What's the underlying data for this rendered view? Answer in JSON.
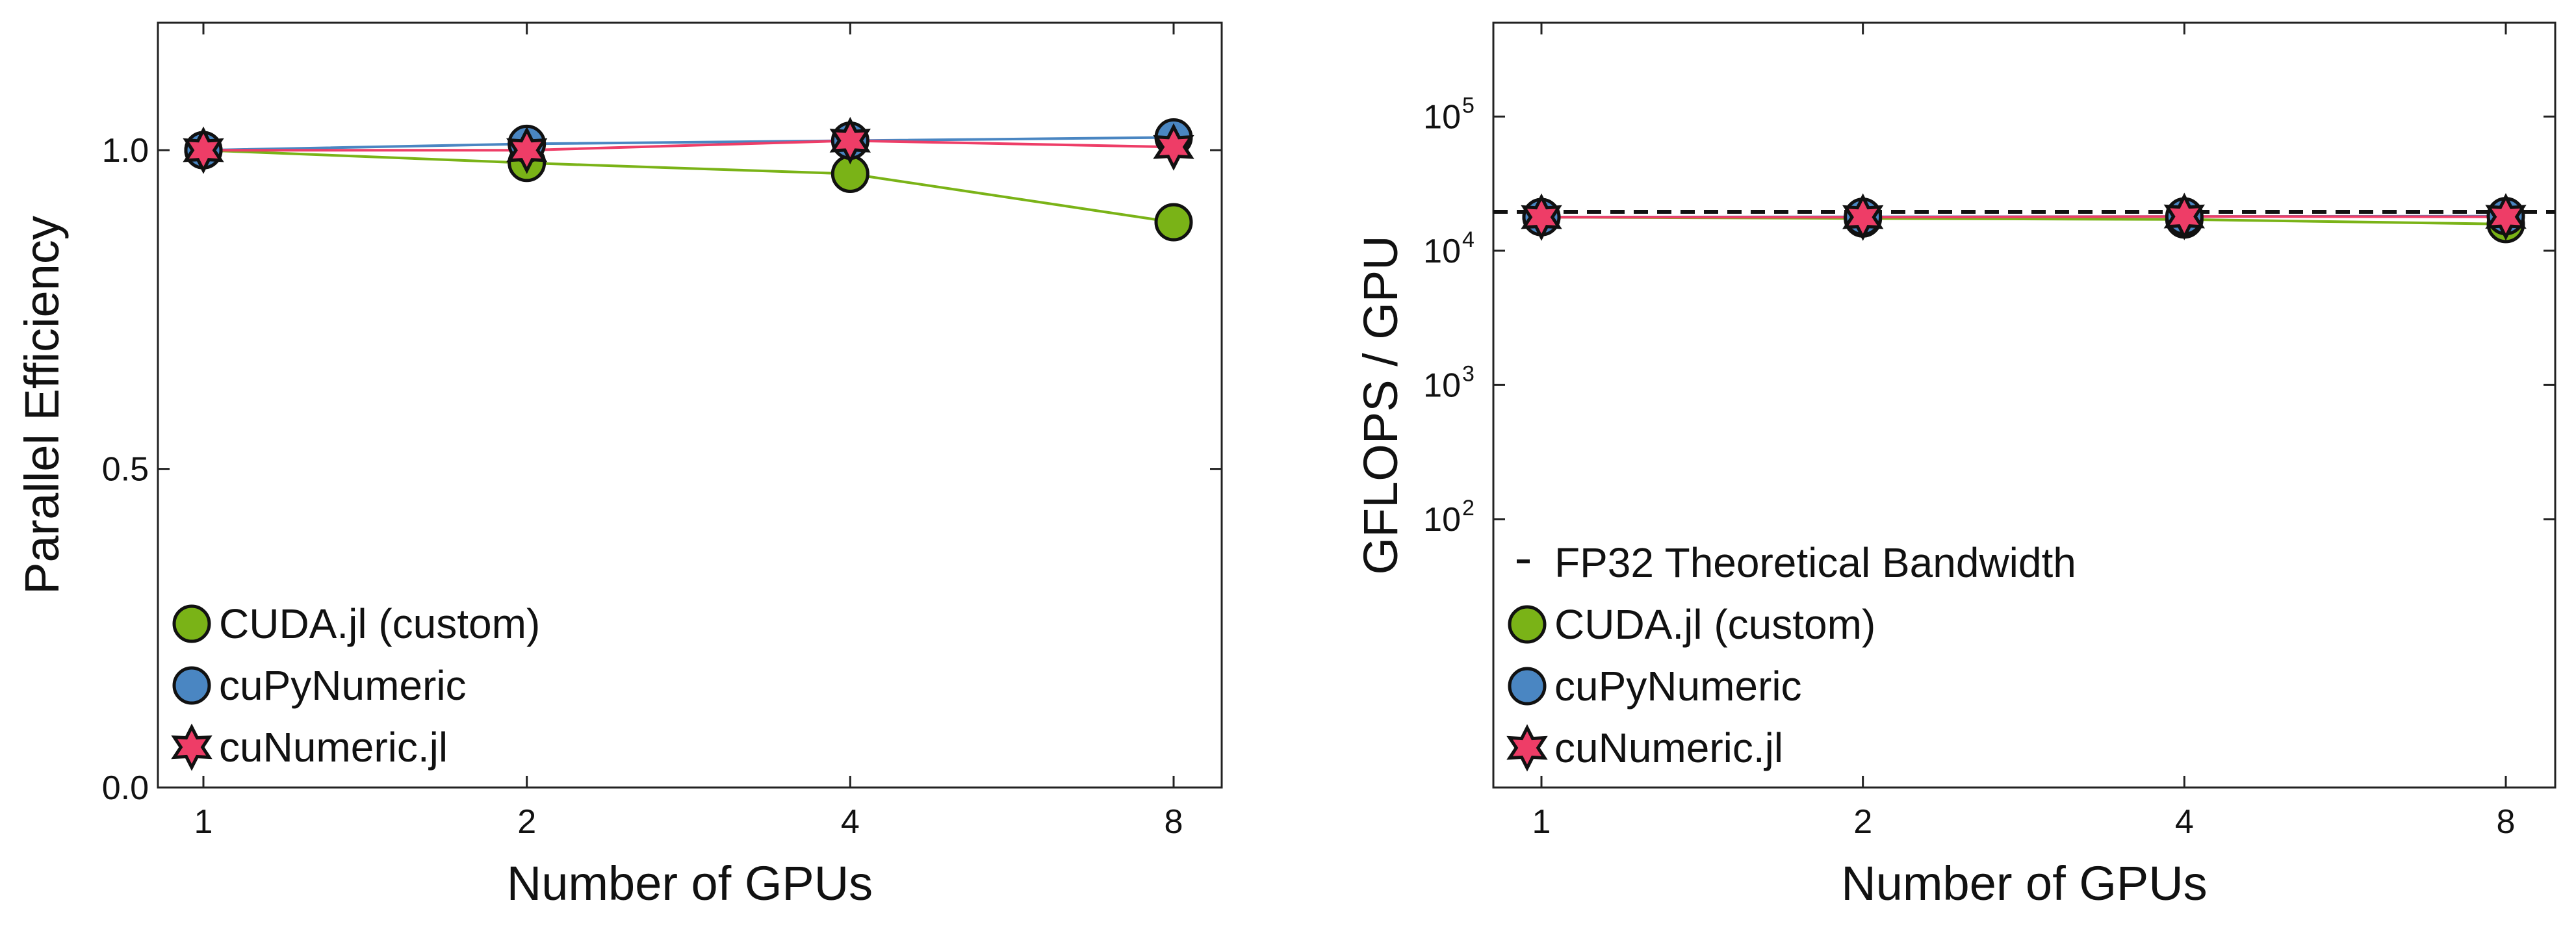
{
  "legend_labels": {
    "cuda": "CUDA.jl (custom)",
    "cupy": "cuPyNumeric",
    "cunum": "cuNumeric.jl",
    "fp32": "FP32 Theoretical Bandwidth"
  },
  "colors": {
    "cuda": "#7ab317",
    "cupy": "#4a86c2",
    "cunum": "#ee3d67",
    "marker_edge": "#111111",
    "reference_line": "#111111"
  },
  "chart_data": [
    {
      "type": "line",
      "title": "",
      "xlabel": "Number of GPUs",
      "ylabel": "Parallel Efficiency",
      "x": [
        1,
        2,
        4,
        8
      ],
      "x_ticks": [
        "1",
        "2",
        "4",
        "8"
      ],
      "x_scale": "log2",
      "ylim": [
        0,
        1.2
      ],
      "y_ticks": [
        0,
        0.5,
        1.0
      ],
      "y_tick_labels": [
        "0.0",
        "0.5",
        "1.0"
      ],
      "grid": false,
      "legend_placement": "lower-left",
      "series": [
        {
          "key": "cuda",
          "name": "CUDA.jl (custom)",
          "marker": "circle",
          "values": [
            1.0,
            0.98,
            0.963,
            0.887
          ]
        },
        {
          "key": "cupy",
          "name": "cuPyNumeric",
          "marker": "circle",
          "values": [
            1.0,
            1.01,
            1.015,
            1.02
          ]
        },
        {
          "key": "cunum",
          "name": "cuNumeric.jl",
          "marker": "star",
          "values": [
            1.0,
            1.0,
            1.015,
            1.005
          ]
        }
      ]
    },
    {
      "type": "line",
      "title": "",
      "xlabel": "Number of GPUs",
      "ylabel": "GFLOPS / GPU",
      "x": [
        1,
        2,
        4,
        8
      ],
      "x_ticks": [
        "1",
        "2",
        "4",
        "8"
      ],
      "x_scale": "log2",
      "y_scale": "log",
      "ylim": [
        1,
        500000
      ],
      "y_ticks": [
        100,
        1000,
        10000,
        100000
      ],
      "y_tick_labels": [
        {
          "base": "10",
          "exp": "2"
        },
        {
          "base": "10",
          "exp": "3"
        },
        {
          "base": "10",
          "exp": "4"
        },
        {
          "base": "10",
          "exp": "5"
        }
      ],
      "grid": false,
      "legend_placement": "lower-left",
      "reference_line": {
        "name": "FP32 Theoretical Bandwidth",
        "value": 19500,
        "style": "dashed"
      },
      "series": [
        {
          "key": "cuda",
          "name": "CUDA.jl (custom)",
          "marker": "circle",
          "values": [
            17800,
            17400,
            17100,
            15800
          ]
        },
        {
          "key": "cupy",
          "name": "cuPyNumeric",
          "marker": "circle",
          "values": [
            17800,
            17900,
            18000,
            18100
          ]
        },
        {
          "key": "cunum",
          "name": "cuNumeric.jl",
          "marker": "star",
          "values": [
            17800,
            17800,
            18000,
            17900
          ]
        }
      ]
    }
  ]
}
